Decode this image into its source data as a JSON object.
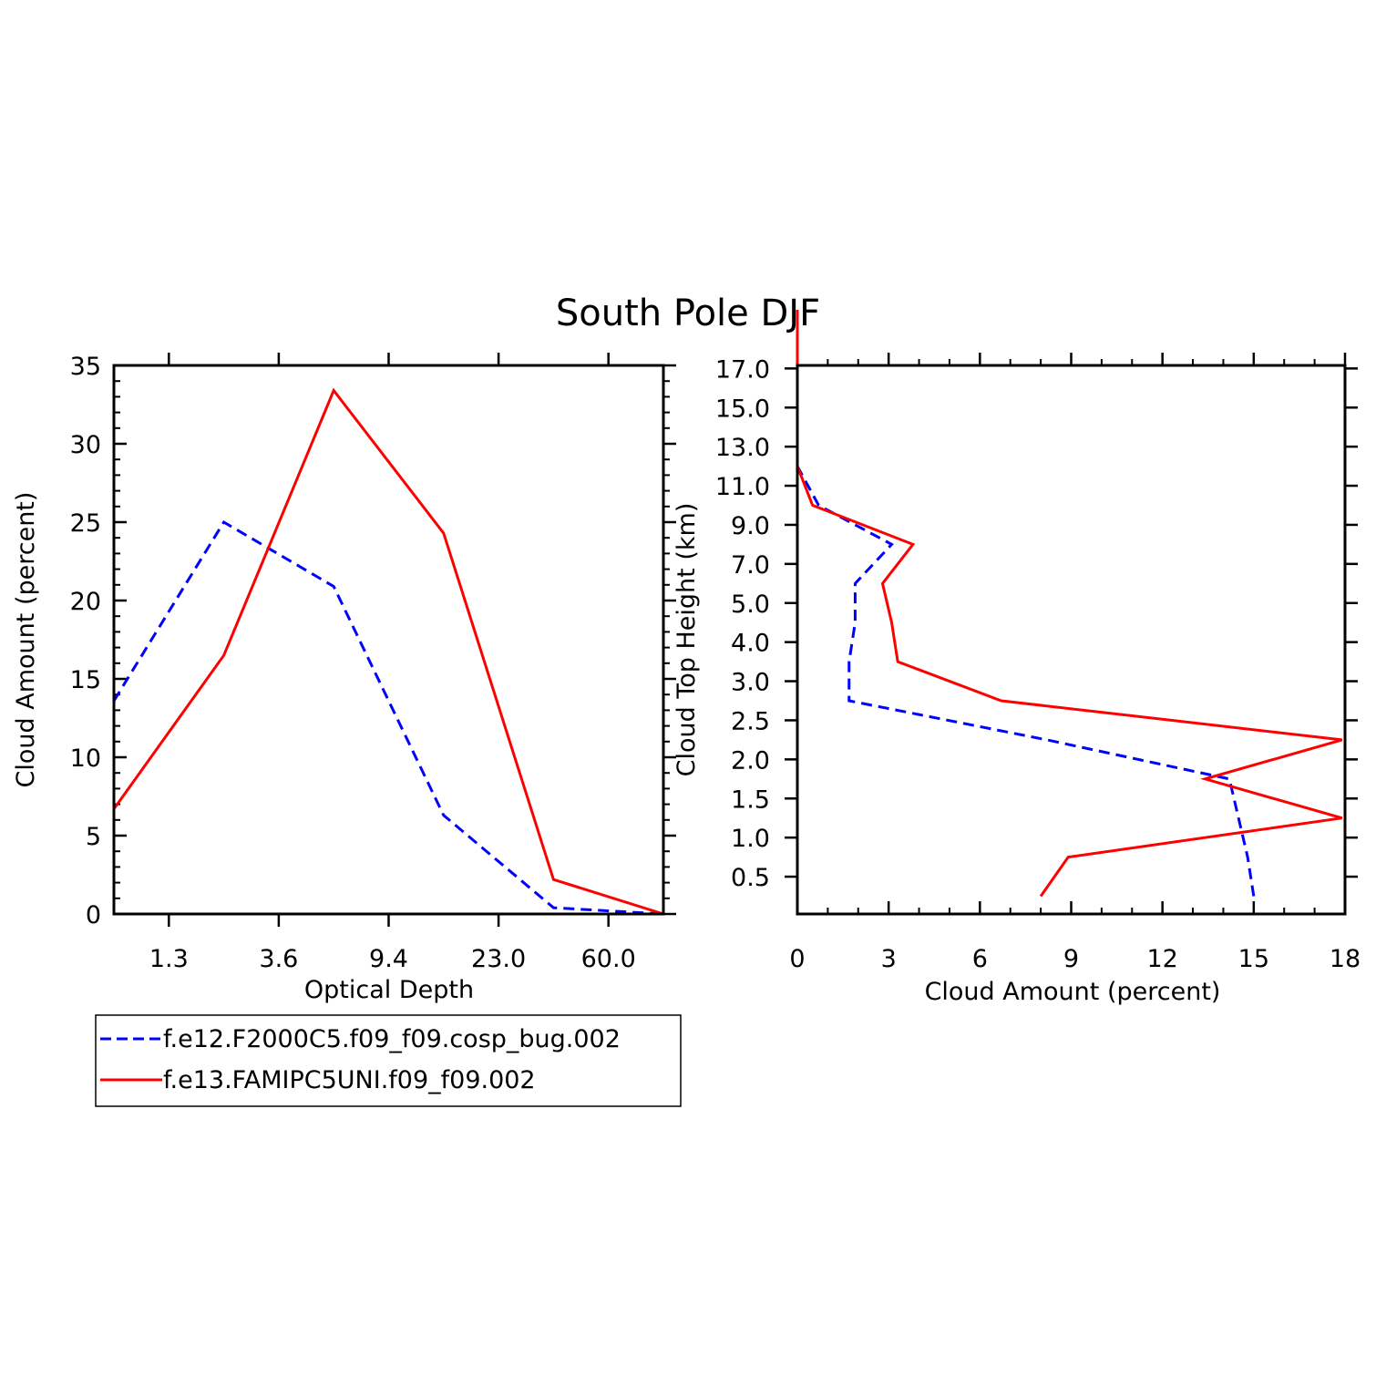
{
  "title": "South Pole DJF",
  "colors": {
    "series1": "#0000ff",
    "series2": "#ff0000",
    "axis": "#000000"
  },
  "legend": [
    {
      "label": "f.e12.F2000C5.f09_f09.cosp_bug.002",
      "color": "#0000ff",
      "dash": true
    },
    {
      "label": "f.e13.FAMIPC5UNI.f09_f09.002",
      "color": "#ff0000",
      "dash": false
    }
  ],
  "chart_data": [
    {
      "type": "line",
      "xlabel": "Optical Depth",
      "ylabel": "Cloud Amount (percent)",
      "ylim": [
        0,
        35
      ],
      "yticks": [
        "0",
        "5",
        "10",
        "15",
        "20",
        "25",
        "30",
        "35"
      ],
      "xticks": [
        "1.3",
        "3.6",
        "9.4",
        "23.0",
        "60.0"
      ],
      "x": [
        0,
        1,
        2,
        3,
        4,
        5
      ],
      "series": [
        {
          "name": "f.e12.F2000C5.f09_f09.cosp_bug.002",
          "values": [
            13.6,
            25.0,
            20.9,
            6.3,
            0.4,
            0.0
          ]
        },
        {
          "name": "f.e13.FAMIPC5UNI.f09_f09.002",
          "values": [
            6.7,
            16.5,
            33.4,
            24.3,
            2.2,
            0.0
          ]
        }
      ]
    },
    {
      "type": "line",
      "xlabel": "Cloud Amount (percent)",
      "ylabel": "Cloud Top Height (km)",
      "xlim": [
        0,
        18
      ],
      "xticks": [
        "0",
        "3",
        "6",
        "9",
        "12",
        "15",
        "18"
      ],
      "yticks": [
        "0.5",
        "1.0",
        "1.5",
        "2.0",
        "2.5",
        "3.0",
        "4.0",
        "5.0",
        "7.0",
        "9.0",
        "11.0",
        "13.0",
        "15.0",
        "17.0"
      ],
      "height_levels": [
        0,
        1,
        2,
        3,
        4,
        5,
        6,
        7,
        8,
        9,
        10,
        11,
        12,
        13,
        14,
        15
      ],
      "series": [
        {
          "name": "f.e12.F2000C5.f09_f09.cosp_bug.002",
          "values": [
            15.0,
            14.8,
            14.5,
            14.2,
            8.2,
            1.7,
            1.7,
            1.9,
            1.9,
            3.1,
            0.7,
            0.0,
            0.0,
            0.0,
            0.0,
            0.0
          ]
        },
        {
          "name": "f.e13.FAMIPC5UNI.f09_f09.002",
          "values": [
            8.0,
            8.9,
            17.9,
            13.4,
            17.9,
            6.7,
            3.3,
            3.1,
            2.8,
            3.8,
            0.5,
            0.0,
            0.0,
            0.0,
            0.0,
            0.0
          ]
        }
      ]
    }
  ]
}
